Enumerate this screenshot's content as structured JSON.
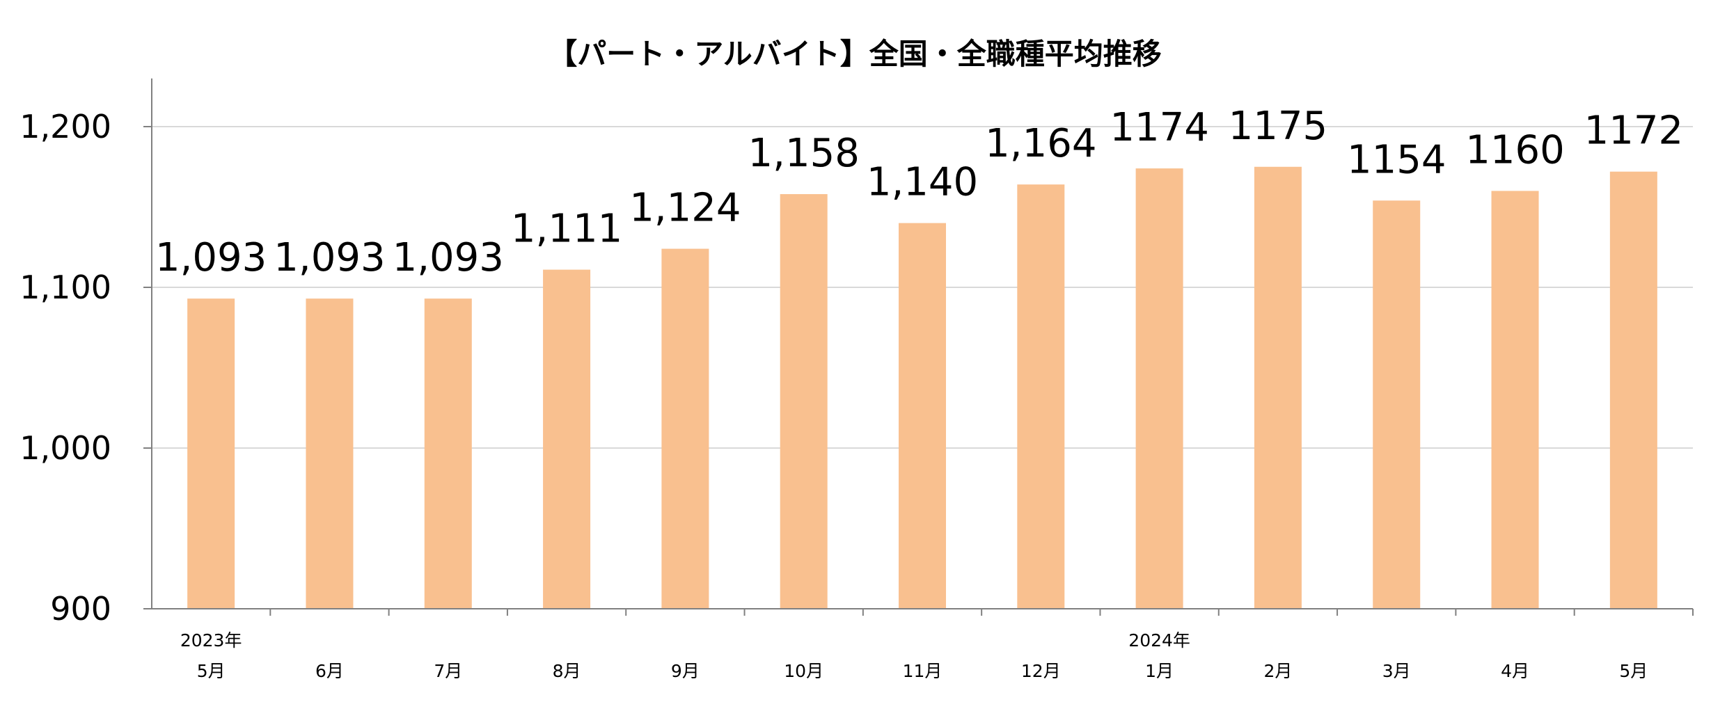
{
  "chart_data": {
    "type": "bar",
    "title": "【パート・アルバイト】全国・全職種平均推移",
    "categories": [
      "5月",
      "6月",
      "7月",
      "8月",
      "9月",
      "10月",
      "11月",
      "12月",
      "1月",
      "2月",
      "3月",
      "4月",
      "5月"
    ],
    "year_labels": [
      {
        "category_index": 0,
        "label": "2023年"
      },
      {
        "category_index": 8,
        "label": "2024年"
      }
    ],
    "values": [
      1093,
      1093,
      1093,
      1111,
      1124,
      1158,
      1140,
      1164,
      1174,
      1175,
      1154,
      1160,
      1172
    ],
    "value_labels": [
      "1,093",
      "1,093",
      "1,093",
      "1,111",
      "1,124",
      "1,158",
      "1,140",
      "1,164",
      "1174",
      "1175",
      "1154",
      "1160",
      "1172"
    ],
    "ylim": [
      900,
      1230
    ],
    "yticks": [
      900,
      1000,
      1100,
      1200
    ],
    "ytick_labels": [
      "900",
      "1,000",
      "1,100",
      "1,200"
    ],
    "grid": true,
    "xlabel": "",
    "ylabel": "",
    "colors": {
      "bar": "#F9C08F",
      "grid": "#D9D9D9",
      "axis": "#808080"
    }
  }
}
